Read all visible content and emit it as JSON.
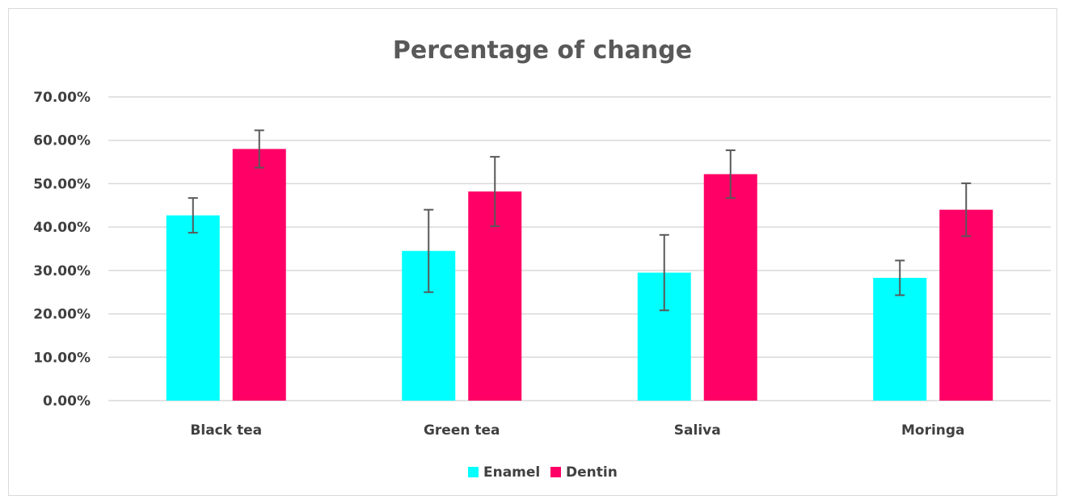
{
  "chart_data": {
    "type": "bar",
    "title": "Percentage of change",
    "xlabel": "",
    "ylabel": "",
    "categories": [
      "Black tea",
      "Green tea",
      "Saliva",
      "Moringa"
    ],
    "series": [
      {
        "name": "Enamel",
        "color": "#00ffff",
        "values": [
          0.427,
          0.345,
          0.295,
          0.283
        ],
        "errors": [
          0.04,
          0.095,
          0.087,
          0.04
        ]
      },
      {
        "name": "Dentin",
        "color": "#ff0066",
        "values": [
          0.58,
          0.482,
          0.522,
          0.44
        ],
        "errors": [
          0.043,
          0.08,
          0.055,
          0.061
        ]
      }
    ],
    "ylim": [
      0,
      0.7
    ],
    "yticks": [
      "0.00%",
      "10.00%",
      "20.00%",
      "30.00%",
      "40.00%",
      "50.00%",
      "60.00%",
      "70.00%"
    ],
    "grid": true,
    "legend": "bottom",
    "gridColor": "#d9d9d9",
    "errorBarColor": "#595959"
  }
}
